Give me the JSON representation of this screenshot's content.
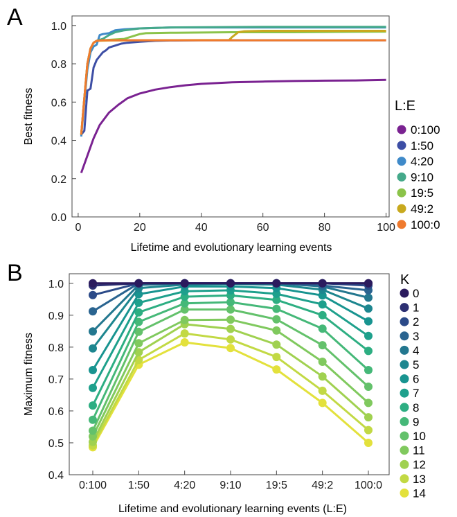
{
  "panels": {
    "a_letter": "A",
    "b_letter": "B"
  },
  "chart_data": [
    {
      "type": "line",
      "panel": "A",
      "xlabel": "Lifetime and evolutionary learning events",
      "ylabel": "Best fitness",
      "xlim": [
        -2,
        101
      ],
      "ylim": [
        0,
        1.05
      ],
      "xticks": [
        0,
        20,
        40,
        60,
        80,
        100
      ],
      "yticks": [
        "0.0",
        "0.2",
        "0.4",
        "0.6",
        "0.8",
        "1.0"
      ],
      "legend_title": "L:E",
      "legend_position": "right",
      "series": [
        {
          "name": "0:100",
          "color": "#7a2291",
          "points": [
            [
              1,
              0.23
            ],
            [
              3,
              0.32
            ],
            [
              5,
              0.41
            ],
            [
              7,
              0.48
            ],
            [
              10,
              0.545
            ],
            [
              13,
              0.585
            ],
            [
              16,
              0.62
            ],
            [
              20,
              0.645
            ],
            [
              25,
              0.665
            ],
            [
              30,
              0.678
            ],
            [
              35,
              0.688
            ],
            [
              40,
              0.695
            ],
            [
              50,
              0.703
            ],
            [
              60,
              0.707
            ],
            [
              70,
              0.71
            ],
            [
              80,
              0.712
            ],
            [
              90,
              0.713
            ],
            [
              100,
              0.716
            ]
          ]
        },
        {
          "name": "1:50",
          "color": "#3d4ea5",
          "points": [
            [
              1,
              0.43
            ],
            [
              2,
              0.45
            ],
            [
              3,
              0.66
            ],
            [
              4,
              0.67
            ],
            [
              5,
              0.78
            ],
            [
              6,
              0.82
            ],
            [
              7,
              0.84
            ],
            [
              8,
              0.86
            ],
            [
              9,
              0.87
            ],
            [
              10,
              0.885
            ],
            [
              12,
              0.895
            ],
            [
              14,
              0.905
            ],
            [
              16,
              0.91
            ],
            [
              20,
              0.915
            ],
            [
              25,
              0.92
            ],
            [
              30,
              0.922
            ],
            [
              40,
              0.923
            ],
            [
              100,
              0.923
            ]
          ]
        },
        {
          "name": "4:20",
          "color": "#3f8ac9",
          "points": [
            [
              1,
              0.42
            ],
            [
              2,
              0.6
            ],
            [
              3,
              0.77
            ],
            [
              4,
              0.86
            ],
            [
              5,
              0.89
            ],
            [
              6,
              0.9
            ],
            [
              7,
              0.95
            ],
            [
              8,
              0.955
            ],
            [
              10,
              0.96
            ],
            [
              12,
              0.975
            ],
            [
              15,
              0.98
            ],
            [
              20,
              0.985
            ],
            [
              30,
              0.99
            ],
            [
              50,
              0.99
            ],
            [
              100,
              0.99
            ]
          ]
        },
        {
          "name": "9:10",
          "color": "#45a98a",
          "points": [
            [
              1,
              0.43
            ],
            [
              2,
              0.62
            ],
            [
              3,
              0.8
            ],
            [
              4,
              0.88
            ],
            [
              5,
              0.91
            ],
            [
              6,
              0.92
            ],
            [
              8,
              0.93
            ],
            [
              10,
              0.95
            ],
            [
              12,
              0.965
            ],
            [
              15,
              0.975
            ],
            [
              20,
              0.985
            ],
            [
              30,
              0.99
            ],
            [
              60,
              0.993
            ],
            [
              100,
              0.993
            ]
          ]
        },
        {
          "name": "19:5",
          "color": "#8bc34a",
          "points": [
            [
              1,
              0.43
            ],
            [
              2,
              0.62
            ],
            [
              3,
              0.8
            ],
            [
              4,
              0.88
            ],
            [
              5,
              0.91
            ],
            [
              6,
              0.92
            ],
            [
              10,
              0.925
            ],
            [
              15,
              0.93
            ],
            [
              20,
              0.955
            ],
            [
              22,
              0.96
            ],
            [
              30,
              0.962
            ],
            [
              50,
              0.965
            ],
            [
              70,
              0.965
            ],
            [
              100,
              0.968
            ]
          ]
        },
        {
          "name": "49:2",
          "color": "#c8a91e",
          "points": [
            [
              1,
              0.43
            ],
            [
              2,
              0.62
            ],
            [
              3,
              0.8
            ],
            [
              4,
              0.88
            ],
            [
              5,
              0.91
            ],
            [
              6,
              0.92
            ],
            [
              10,
              0.922
            ],
            [
              20,
              0.923
            ],
            [
              49,
              0.924
            ],
            [
              50,
              0.94
            ],
            [
              52,
              0.965
            ],
            [
              54,
              0.97
            ],
            [
              60,
              0.972
            ],
            [
              100,
              0.972
            ]
          ]
        },
        {
          "name": "100:0",
          "color": "#ef7a2e",
          "points": [
            [
              1,
              0.43
            ],
            [
              2,
              0.62
            ],
            [
              3,
              0.8
            ],
            [
              4,
              0.88
            ],
            [
              5,
              0.91
            ],
            [
              6,
              0.92
            ],
            [
              8,
              0.923
            ],
            [
              10,
              0.923
            ],
            [
              100,
              0.923
            ]
          ]
        }
      ]
    },
    {
      "type": "line",
      "panel": "B",
      "xlabel": "Lifetime and evolutionary learning events (L:E)",
      "ylabel": "Maximum fitness",
      "categories": [
        "0:100",
        "1:50",
        "4:20",
        "9:10",
        "19:5",
        "49:2",
        "100:0"
      ],
      "ylim": [
        0.4,
        1.03
      ],
      "yticks": [
        "0.4",
        "0.5",
        "0.6",
        "0.7",
        "0.8",
        "0.9",
        "1.0"
      ],
      "legend_title": "K",
      "legend_position": "right",
      "series": [
        {
          "name": "0",
          "color": "#2b1b5e",
          "values": [
            1.0,
            1.0,
            1.0,
            1.0,
            1.0,
            1.0,
            1.0
          ]
        },
        {
          "name": "1",
          "color": "#2c2f72",
          "values": [
            0.993,
            1.0,
            1.0,
            1.0,
            1.0,
            1.0,
            1.0
          ]
        },
        {
          "name": "2",
          "color": "#2b4a88",
          "values": [
            0.963,
            1.0,
            1.0,
            1.0,
            1.0,
            1.0,
            0.993
          ]
        },
        {
          "name": "3",
          "color": "#2a6490",
          "values": [
            0.912,
            1.0,
            1.0,
            1.0,
            1.0,
            0.993,
            0.978
          ]
        },
        {
          "name": "4",
          "color": "#23778f",
          "values": [
            0.849,
            0.995,
            1.0,
            1.0,
            1.0,
            0.99,
            0.955
          ]
        },
        {
          "name": "5",
          "color": "#1d868f",
          "values": [
            0.796,
            0.985,
            0.996,
            0.998,
            0.996,
            0.98,
            0.921
          ]
        },
        {
          "name": "6",
          "color": "#189490",
          "values": [
            0.728,
            0.966,
            0.99,
            0.99,
            0.985,
            0.962,
            0.881
          ]
        },
        {
          "name": "7",
          "color": "#1ea08c",
          "values": [
            0.672,
            0.939,
            0.975,
            0.978,
            0.967,
            0.934,
            0.835
          ]
        },
        {
          "name": "8",
          "color": "#2dae82",
          "values": [
            0.617,
            0.909,
            0.958,
            0.962,
            0.948,
            0.9,
            0.788
          ]
        },
        {
          "name": "9",
          "color": "#45b878",
          "values": [
            0.572,
            0.879,
            0.937,
            0.941,
            0.92,
            0.858,
            0.728
          ]
        },
        {
          "name": "10",
          "color": "#63c16b",
          "values": [
            0.538,
            0.848,
            0.918,
            0.918,
            0.887,
            0.806,
            0.676
          ]
        },
        {
          "name": "11",
          "color": "#80c95e",
          "values": [
            0.52,
            0.812,
            0.885,
            0.886,
            0.852,
            0.754,
            0.625
          ]
        },
        {
          "name": "12",
          "color": "#a0d150",
          "values": [
            0.503,
            0.784,
            0.872,
            0.857,
            0.808,
            0.708,
            0.58
          ]
        },
        {
          "name": "13",
          "color": "#c2d944",
          "values": [
            0.492,
            0.76,
            0.843,
            0.824,
            0.769,
            0.663,
            0.54
          ]
        },
        {
          "name": "14",
          "color": "#e3e13c",
          "values": [
            0.486,
            0.745,
            0.815,
            0.797,
            0.73,
            0.625,
            0.5
          ]
        }
      ]
    }
  ]
}
